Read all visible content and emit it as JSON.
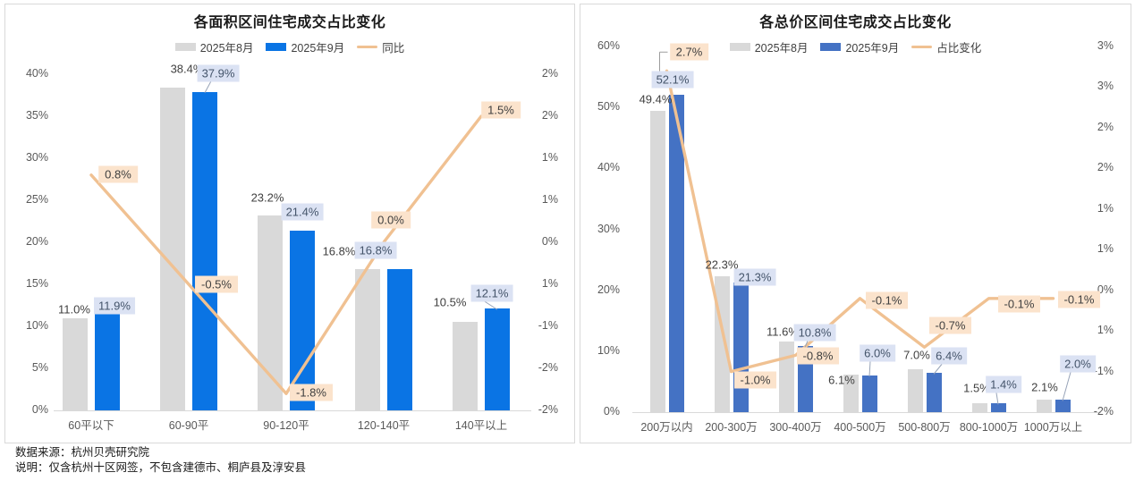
{
  "charts": [
    {
      "title": "各面积区间住宅成交占比变化",
      "legend": [
        {
          "label": "2025年8月",
          "swatch": "bar",
          "color": "#d9d9d9"
        },
        {
          "label": "2025年9月",
          "swatch": "bar",
          "color": "#0a74e4"
        },
        {
          "label": "同比",
          "swatch": "line",
          "color": "#f0c192"
        }
      ],
      "chart_data": {
        "type": "bar+line",
        "categories": [
          "60平以下",
          "60-90平",
          "90-120平",
          "120-140平",
          "140平以上"
        ],
        "series": [
          {
            "name": "2025年8月",
            "type": "bar",
            "axis": "left",
            "color": "#d9d9d9",
            "values": [
              11.0,
              38.4,
              23.2,
              16.8,
              10.5
            ],
            "labels": [
              "11.0%",
              "38.4%",
              "23.2%",
              "16.8%",
              "10.5%"
            ]
          },
          {
            "name": "2025年9月",
            "type": "bar",
            "axis": "left",
            "color": "#0a74e4",
            "values": [
              11.9,
              37.9,
              21.4,
              16.8,
              12.1
            ],
            "labels": [
              "11.9%",
              "37.9%",
              "21.4%",
              "16.8%",
              "12.1%"
            ]
          },
          {
            "name": "同比",
            "type": "line",
            "axis": "right",
            "color": "#f0c192",
            "values": [
              0.8,
              -0.5,
              -1.8,
              0.0,
              1.5
            ],
            "labels": [
              "0.8%",
              "-0.5%",
              "-1.8%",
              "0.0%",
              "1.5%"
            ]
          }
        ],
        "left_axis": {
          "min": 0,
          "max": 40,
          "tick_labels": [
            "40%",
            "35%",
            "30%",
            "25%",
            "20%",
            "15%",
            "10%",
            "5%",
            "0%"
          ]
        },
        "right_axis": {
          "min": -2,
          "max": 2,
          "tick_labels": [
            "2%",
            "2%",
            "1%",
            "1%",
            "0%",
            "1%",
            "-1%",
            "-2%",
            "-2%"
          ]
        },
        "grid": false,
        "legend_position": "top"
      }
    },
    {
      "title": "各总价区间住宅成交占比变化",
      "legend": [
        {
          "label": "2025年8月",
          "swatch": "bar",
          "color": "#d9d9d9"
        },
        {
          "label": "2025年9月",
          "swatch": "bar",
          "color": "#4472c4"
        },
        {
          "label": "占比变化",
          "swatch": "line",
          "color": "#f0c192"
        }
      ],
      "chart_data": {
        "type": "bar+line",
        "categories": [
          "200万以内",
          "200-300万",
          "300-400万",
          "400-500万",
          "500-800万",
          "800-1000万",
          "1000万以上"
        ],
        "series": [
          {
            "name": "2025年8月",
            "type": "bar",
            "axis": "left",
            "color": "#d9d9d9",
            "values": [
              49.4,
              22.3,
              11.6,
              6.1,
              7.0,
              1.5,
              2.1
            ],
            "labels": [
              "49.4%",
              "22.3%",
              "11.6%",
              "6.1%",
              "7.0%",
              "1.5%",
              "2.1%"
            ]
          },
          {
            "name": "2025年9月",
            "type": "bar",
            "axis": "left",
            "color": "#4472c4",
            "values": [
              52.1,
              21.3,
              10.8,
              6.0,
              6.4,
              1.4,
              2.0
            ],
            "labels": [
              "52.1%",
              "21.3%",
              "10.8%",
              "6.0%",
              "6.4%",
              "1.4%",
              "2.0%"
            ]
          },
          {
            "name": "占比变化",
            "type": "line",
            "axis": "right",
            "color": "#f0c192",
            "values": [
              2.7,
              -1.0,
              -0.8,
              -0.1,
              -0.7,
              -0.1,
              -0.1
            ],
            "labels": [
              "2.7%",
              "-1.0%",
              "-0.8%",
              "-0.1%",
              "-0.7%",
              "-0.1%",
              "-0.1%"
            ]
          }
        ],
        "left_axis": {
          "min": 0,
          "max": 60,
          "tick_labels": [
            "60%",
            "50%",
            "40%",
            "30%",
            "20%",
            "10%",
            "0%"
          ]
        },
        "right_axis": {
          "min": -1.5,
          "max": 3,
          "tick_labels": [
            "3%",
            "3%",
            "2%",
            "2%",
            "1%",
            "1%",
            "0%",
            "1%",
            "-1%",
            "-2%"
          ]
        },
        "grid": false,
        "legend_position": "top"
      }
    }
  ],
  "footer": {
    "source": "数据来源：杭州贝壳研究院",
    "note": "说明：仅含杭州十区网签，不包含建德市、桐庐县及淳安县"
  },
  "colors": {
    "bar_aug": "#d9d9d9",
    "bar_sep_left_chart": "#0a74e4",
    "bar_sep_right_chart": "#4472c4",
    "line": "#f0c192",
    "blue_label_bg": "#dbe2f3",
    "orange_label_bg": "#fbe3cc",
    "panel_border": "#d9d9d9"
  }
}
